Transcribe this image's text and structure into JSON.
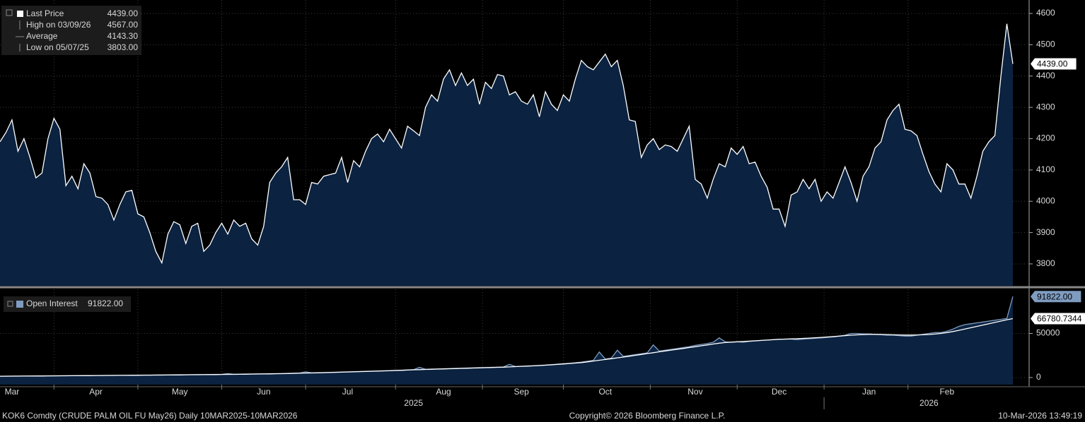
{
  "chart_data": [
    {
      "type": "area",
      "series": [
        {
          "name": "Last Price",
          "color": "#ffffff",
          "fill": "#0b2240",
          "values": [
            4190,
            4220,
            4260,
            4160,
            4200,
            4140,
            4075,
            4090,
            4200,
            4265,
            4230,
            4050,
            4080,
            4040,
            4120,
            4090,
            4015,
            4010,
            3990,
            3940,
            3990,
            4030,
            4035,
            3960,
            3950,
            3900,
            3840,
            3803,
            3895,
            3935,
            3925,
            3865,
            3920,
            3930,
            3840,
            3860,
            3900,
            3930,
            3895,
            3940,
            3920,
            3930,
            3880,
            3860,
            3920,
            4060,
            4090,
            4110,
            4140,
            4005,
            4005,
            3990,
            4060,
            4055,
            4080,
            4085,
            4090,
            4140,
            4060,
            4130,
            4110,
            4160,
            4200,
            4215,
            4190,
            4230,
            4200,
            4170,
            4240,
            4225,
            4210,
            4300,
            4340,
            4320,
            4390,
            4420,
            4370,
            4410,
            4370,
            4390,
            4310,
            4380,
            4360,
            4405,
            4400,
            4340,
            4350,
            4320,
            4310,
            4340,
            4270,
            4350,
            4310,
            4290,
            4340,
            4320,
            4390,
            4450,
            4430,
            4420,
            4445,
            4470,
            4430,
            4450,
            4370,
            4260,
            4255,
            4140,
            4180,
            4200,
            4165,
            4180,
            4175,
            4160,
            4200,
            4240,
            4070,
            4055,
            4010,
            4070,
            4120,
            4110,
            4170,
            4150,
            4175,
            4120,
            4125,
            4080,
            4045,
            3975,
            3975,
            3920,
            4020,
            4030,
            4070,
            4040,
            4070,
            4000,
            4030,
            4010,
            4060,
            4110,
            4060,
            4000,
            4080,
            4110,
            4170,
            4190,
            4260,
            4290,
            4310,
            4230,
            4225,
            4210,
            4150,
            4095,
            4055,
            4030,
            4120,
            4100,
            4055,
            4055,
            4010,
            4080,
            4160,
            4190,
            4210,
            4400,
            4567,
            4439
          ]
        }
      ],
      "last_label": "4439.00",
      "stats": [
        {
          "label": "High on 03/09/26",
          "value": "4567.00"
        },
        {
          "label": "Average",
          "value": "4143.30"
        },
        {
          "label": "Low on 05/07/25",
          "value": "3803.00"
        }
      ],
      "ylim": [
        3730,
        4643
      ],
      "yticks": [
        3800,
        3900,
        4000,
        4100,
        4200,
        4300,
        4400,
        4500,
        4600
      ],
      "grid": true
    },
    {
      "type": "area",
      "series": [
        {
          "name": "Open Interest",
          "color": "#7f9cc0",
          "fill": "#0b2240",
          "last_label": "91822.00",
          "values": [
            1500,
            1600,
            1600,
            1700,
            1700,
            1800,
            1800,
            1900,
            1900,
            2000,
            2000,
            2100,
            2100,
            2200,
            2200,
            2300,
            2300,
            2400,
            2400,
            2500,
            2500,
            2600,
            2700,
            2700,
            2800,
            2800,
            2900,
            3000,
            3000,
            3100,
            3200,
            3200,
            3300,
            3400,
            3400,
            3500,
            3600,
            3700,
            4500,
            3800,
            3900,
            4000,
            4100,
            4200,
            4300,
            4400,
            4500,
            4600,
            4800,
            5000,
            5200,
            6500,
            5400,
            5500,
            5700,
            5900,
            6100,
            6300,
            6500,
            6700,
            6900,
            7100,
            7300,
            7500,
            7700,
            7900,
            8200,
            8400,
            8700,
            9000,
            11500,
            9400,
            9600,
            9800,
            10000,
            10200,
            10400,
            10600,
            10800,
            11000,
            11200,
            11400,
            11600,
            11800,
            12000,
            15000,
            12500,
            12800,
            13100,
            13400,
            13800,
            14200,
            14700,
            15200,
            15700,
            16200,
            16800,
            17500,
            18500,
            19500,
            29000,
            21000,
            22000,
            31000,
            24000,
            25000,
            26000,
            27000,
            28000,
            37000,
            30000,
            31000,
            32000,
            33000,
            34000,
            35000,
            36500,
            37500,
            38500,
            40000,
            45000,
            40500,
            40000,
            40500,
            40000,
            41000,
            41500,
            42000,
            42500,
            43000,
            43500,
            43500,
            43500,
            43000,
            43500,
            44000,
            44500,
            45000,
            45500,
            46000,
            47000,
            48000,
            50000,
            50000,
            49500,
            49500,
            49000,
            48500,
            48000,
            48000,
            47500,
            47000,
            47000,
            48000,
            49000,
            50000,
            51000,
            51000,
            52500,
            55000,
            58000,
            60000,
            61000,
            62000,
            63000,
            64000,
            65000,
            66000,
            67000,
            91822
          ]
        },
        {
          "color": "#ffffff",
          "last_label": "66780.7344",
          "values": [
            1500,
            1500,
            1600,
            1600,
            1700,
            1700,
            1800,
            1800,
            1900,
            1900,
            2000,
            2000,
            2100,
            2100,
            2200,
            2200,
            2300,
            2300,
            2400,
            2400,
            2500,
            2500,
            2600,
            2600,
            2700,
            2700,
            2800,
            2800,
            2900,
            3000,
            3000,
            3100,
            3200,
            3200,
            3300,
            3400,
            3400,
            3500,
            3600,
            3600,
            3700,
            3800,
            3900,
            4000,
            4100,
            4200,
            4300,
            4400,
            4500,
            4700,
            4900,
            5100,
            5200,
            5400,
            5500,
            5700,
            5900,
            6100,
            6300,
            6500,
            6700,
            6900,
            7100,
            7300,
            7500,
            7700,
            8000,
            8200,
            8500,
            8800,
            9000,
            9200,
            9400,
            9600,
            9800,
            10000,
            10200,
            10400,
            10600,
            10800,
            11000,
            11200,
            11400,
            11600,
            11800,
            12100,
            12400,
            12700,
            13000,
            13300,
            13600,
            14000,
            14400,
            14900,
            15400,
            15900,
            16400,
            17000,
            17800,
            18700,
            19600,
            20500,
            21400,
            22300,
            23200,
            24200,
            25200,
            26200,
            27200,
            28200,
            29200,
            30200,
            31100,
            32000,
            33000,
            34000,
            35000,
            36000,
            37000,
            38000,
            39000,
            39700,
            40200,
            40600,
            40900,
            41300,
            41700,
            42100,
            42500,
            42900,
            43300,
            43600,
            43900,
            44100,
            44400,
            44700,
            45100,
            45500,
            46000,
            46500,
            47000,
            47500,
            48000,
            48400,
            48700,
            48900,
            49000,
            48900,
            48700,
            48500,
            48300,
            48200,
            48200,
            48300,
            48500,
            48800,
            49300,
            50000,
            51000,
            52200,
            53500,
            55000,
            56500,
            58000,
            59500,
            61000,
            62500,
            64000,
            65500,
            66780.7344
          ]
        }
      ],
      "categories": [
        null,
        null,
        "Mar",
        null,
        null,
        null,
        null,
        null,
        null,
        null,
        null,
        null,
        null,
        null,
        null,
        null,
        "Apr",
        null,
        null,
        null,
        null,
        null,
        null,
        null,
        null,
        null,
        null,
        null,
        null,
        null,
        "May",
        null,
        null,
        null,
        null,
        null,
        null,
        null,
        null,
        null,
        null,
        null,
        null,
        null,
        "Jun",
        null,
        null,
        null,
        null,
        null,
        null,
        null,
        null,
        null,
        null,
        null,
        null,
        null,
        "Jul",
        null,
        null,
        null,
        null,
        null,
        null,
        null,
        null,
        null,
        null,
        null,
        null,
        null,
        null,
        null,
        "Aug",
        null,
        null,
        null,
        null,
        null,
        null,
        null,
        null,
        null,
        null,
        null,
        null,
        "Sep",
        null,
        null,
        null,
        null,
        null,
        null,
        null,
        null,
        null,
        null,
        null,
        null,
        null,
        "Oct",
        null,
        null,
        null,
        null,
        null,
        null,
        null,
        null,
        null,
        null,
        null,
        null,
        null,
        null,
        "Nov",
        null,
        null,
        null,
        null,
        null,
        null,
        null,
        null,
        null,
        null,
        null,
        null,
        null,
        "Dec",
        null,
        null,
        null,
        null,
        null,
        null,
        null,
        null,
        null,
        null,
        null,
        null,
        null,
        null,
        "Jan",
        null,
        null,
        null,
        null,
        null,
        null,
        null,
        null,
        null,
        null,
        null,
        null,
        "Feb",
        null,
        null,
        null,
        null,
        null,
        null,
        null,
        null,
        null,
        null,
        null
      ],
      "years": [
        null,
        null,
        null,
        null,
        null,
        null,
        null,
        null,
        null,
        null,
        null,
        null,
        null,
        null,
        null,
        null,
        null,
        null,
        null,
        null,
        null,
        null,
        null,
        null,
        null,
        null,
        null,
        null,
        null,
        null,
        null,
        null,
        null,
        null,
        null,
        null,
        null,
        null,
        null,
        null,
        null,
        null,
        null,
        null,
        null,
        null,
        null,
        null,
        null,
        null,
        null,
        null,
        null,
        null,
        null,
        null,
        null,
        null,
        null,
        null,
        null,
        null,
        null,
        null,
        null,
        null,
        null,
        null,
        null,
        "2025",
        null,
        null,
        null,
        null,
        null,
        null,
        null,
        null,
        null,
        null,
        null,
        null,
        null,
        null,
        null,
        null,
        null,
        null,
        null,
        null,
        null,
        null,
        null,
        null,
        null,
        null,
        null,
        null,
        null,
        null,
        null,
        null,
        null,
        null,
        null,
        null,
        null,
        null,
        null,
        null,
        null,
        null,
        null,
        null,
        null,
        null,
        null,
        null,
        null,
        null,
        null,
        null,
        null,
        null,
        null,
        null,
        null,
        null,
        null,
        null,
        null,
        null,
        null,
        null,
        null,
        null,
        null,
        null,
        null,
        null,
        null,
        null,
        null,
        null,
        null,
        null,
        null,
        null,
        null,
        null,
        null,
        null,
        null,
        null,
        null,
        "2026",
        null,
        null,
        null,
        null,
        null,
        null,
        null,
        null,
        null,
        null,
        null,
        null,
        null,
        null
      ],
      "ylim": [
        -8000,
        100000
      ],
      "yticks": [
        0,
        50000
      ],
      "grid": true
    }
  ],
  "footer": {
    "left": "KOK6 Comdty (CRUDE PALM OIL FU May26) Daily 10MAR2025-10MAR2026",
    "center": "Copyright© 2026 Bloomberg Finance L.P.",
    "right": "10-Mar-2026 13:49:19"
  }
}
